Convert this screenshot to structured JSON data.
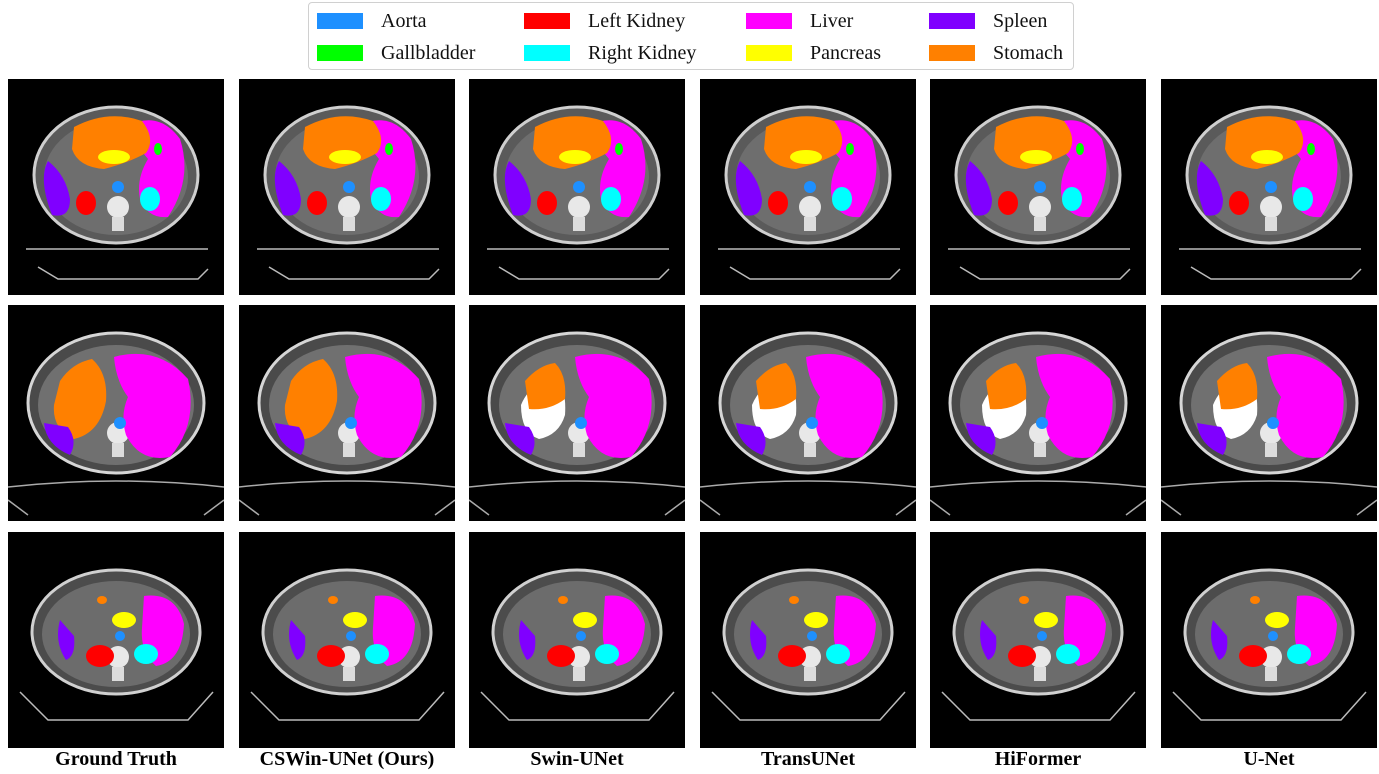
{
  "legend": {
    "items": [
      {
        "label": "Aorta",
        "color": "#1e90ff"
      },
      {
        "label": "Gallbladder",
        "color": "#00ff00"
      },
      {
        "label": "Left Kidney",
        "color": "#ff0000"
      },
      {
        "label": "Right Kidney",
        "color": "#00ffff"
      },
      {
        "label": "Liver",
        "color": "#ff00ff"
      },
      {
        "label": "Pancreas",
        "color": "#ffff00"
      },
      {
        "label": "Spleen",
        "color": "#8000ff"
      },
      {
        "label": "Stomach",
        "color": "#ff8000"
      }
    ]
  },
  "columns": [
    {
      "label": "Ground Truth"
    },
    {
      "label": "CSWin-UNet (Ours)"
    },
    {
      "label": "Swin-UNet"
    },
    {
      "label": "TransUNet"
    },
    {
      "label": "HiFormer"
    },
    {
      "label": "U-Net"
    }
  ]
}
